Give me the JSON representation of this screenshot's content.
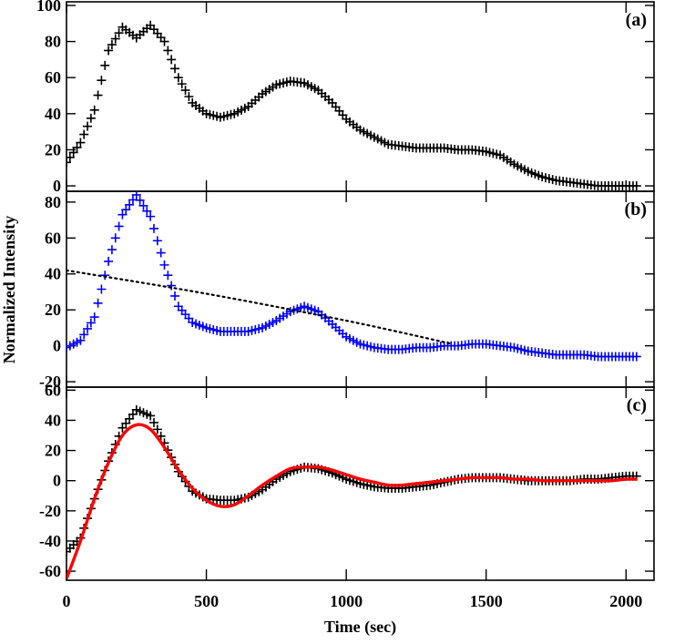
{
  "chart_data": {
    "type": "scatter",
    "xlabel": "Time (sec)",
    "ylabel": "Normalized Intensity",
    "xlim": [
      0,
      2100
    ],
    "xticks": [
      0,
      500,
      1000,
      1500,
      2000
    ],
    "x_tick_labels": [
      "0",
      "500",
      "1000",
      "1500",
      "2000"
    ],
    "panels": [
      {
        "label": "(a)",
        "ylim": [
          -3,
          102
        ],
        "yticks": [
          0,
          20,
          40,
          60,
          80,
          100
        ],
        "y_tick_labels": [
          "0",
          "20",
          "40",
          "60",
          "80",
          "100"
        ],
        "series": [
          {
            "marker": "+",
            "color": "#000000",
            "points": [
              [
                0,
                13
              ],
              [
                50,
                24
              ],
              [
                100,
                42
              ],
              [
                150,
                75
              ],
              [
                200,
                88
              ],
              [
                250,
                82
              ],
              [
                300,
                89
              ],
              [
                350,
                80
              ],
              [
                400,
                60
              ],
              [
                450,
                46
              ],
              [
                500,
                40
              ],
              [
                550,
                38
              ],
              [
                600,
                40
              ],
              [
                650,
                44
              ],
              [
                700,
                51
              ],
              [
                750,
                56
              ],
              [
                800,
                58
              ],
              [
                850,
                57
              ],
              [
                900,
                53
              ],
              [
                950,
                46
              ],
              [
                1000,
                37
              ],
              [
                1050,
                31
              ],
              [
                1100,
                27
              ],
              [
                1150,
                23
              ],
              [
                1200,
                22
              ],
              [
                1250,
                21
              ],
              [
                1300,
                21
              ],
              [
                1350,
                21
              ],
              [
                1400,
                20
              ],
              [
                1450,
                20
              ],
              [
                1500,
                19
              ],
              [
                1550,
                17
              ],
              [
                1600,
                12
              ],
              [
                1650,
                8
              ],
              [
                1700,
                5
              ],
              [
                1750,
                3
              ],
              [
                1800,
                2
              ],
              [
                1850,
                1
              ],
              [
                1900,
                0
              ],
              [
                1950,
                0
              ],
              [
                2000,
                0
              ],
              [
                2040,
                0
              ]
            ]
          }
        ]
      },
      {
        "label": "(b)",
        "ylim": [
          -23,
          86
        ],
        "yticks": [
          -20,
          0,
          20,
          40,
          60,
          80
        ],
        "y_tick_labels": [
          "-20",
          "0",
          "20",
          "40",
          "60",
          "80"
        ],
        "series": [
          {
            "marker": "+",
            "color": "#0000ff",
            "points": [
              [
                0,
                -1
              ],
              [
                50,
                3
              ],
              [
                100,
                16
              ],
              [
                150,
                47
              ],
              [
                200,
                73
              ],
              [
                250,
                84
              ],
              [
                300,
                72
              ],
              [
                350,
                45
              ],
              [
                400,
                22
              ],
              [
                450,
                13
              ],
              [
                500,
                10
              ],
              [
                550,
                8
              ],
              [
                600,
                8
              ],
              [
                650,
                8
              ],
              [
                700,
                10
              ],
              [
                750,
                14
              ],
              [
                800,
                19
              ],
              [
                850,
                22
              ],
              [
                900,
                19
              ],
              [
                950,
                12
              ],
              [
                1000,
                5
              ],
              [
                1050,
                1
              ],
              [
                1100,
                -1
              ],
              [
                1150,
                -2
              ],
              [
                1200,
                -2
              ],
              [
                1250,
                -1
              ],
              [
                1300,
                -1
              ],
              [
                1350,
                0
              ],
              [
                1400,
                0
              ],
              [
                1450,
                1
              ],
              [
                1500,
                1
              ],
              [
                1550,
                0
              ],
              [
                1600,
                -1
              ],
              [
                1650,
                -3
              ],
              [
                1700,
                -4
              ],
              [
                1750,
                -5
              ],
              [
                1800,
                -5
              ],
              [
                1850,
                -5
              ],
              [
                1900,
                -6
              ],
              [
                1950,
                -6
              ],
              [
                2000,
                -6
              ],
              [
                2040,
                -6
              ]
            ]
          },
          {
            "line_style": "dotted",
            "color": "#000000",
            "points": [
              [
                0,
                42
              ],
              [
                500,
                29
              ],
              [
                1000,
                14
              ],
              [
                1380,
                1
              ]
            ]
          }
        ]
      },
      {
        "label": "(c)",
        "ylim": [
          -66,
          62
        ],
        "yticks": [
          -60,
          -40,
          -20,
          0,
          20,
          40,
          60
        ],
        "y_tick_labels": [
          "-60",
          "-40",
          "-20",
          "0",
          "20",
          "40",
          "60"
        ],
        "series": [
          {
            "marker": "+",
            "color": "#000000",
            "points": [
              [
                0,
                -47
              ],
              [
                50,
                -38
              ],
              [
                100,
                -12
              ],
              [
                150,
                13
              ],
              [
                200,
                35
              ],
              [
                250,
                47
              ],
              [
                300,
                43
              ],
              [
                350,
                25
              ],
              [
                400,
                6
              ],
              [
                450,
                -7
              ],
              [
                500,
                -12
              ],
              [
                550,
                -13
              ],
              [
                600,
                -13
              ],
              [
                650,
                -11
              ],
              [
                700,
                -6
              ],
              [
                750,
                1
              ],
              [
                800,
                6
              ],
              [
                850,
                9
              ],
              [
                900,
                8
              ],
              [
                950,
                5
              ],
              [
                1000,
                1
              ],
              [
                1050,
                -2
              ],
              [
                1100,
                -4
              ],
              [
                1150,
                -5
              ],
              [
                1200,
                -5
              ],
              [
                1250,
                -4
              ],
              [
                1300,
                -3
              ],
              [
                1350,
                -1
              ],
              [
                1400,
                1
              ],
              [
                1450,
                2
              ],
              [
                1500,
                2
              ],
              [
                1550,
                2
              ],
              [
                1600,
                1
              ],
              [
                1650,
                0
              ],
              [
                1700,
                0
              ],
              [
                1750,
                0
              ],
              [
                1800,
                0
              ],
              [
                1850,
                1
              ],
              [
                1900,
                1
              ],
              [
                1950,
                2
              ],
              [
                2000,
                3
              ],
              [
                2040,
                3
              ]
            ]
          },
          {
            "line_style": "solid",
            "color": "#ff0000",
            "points": [
              [
                0,
                -65
              ],
              [
                50,
                -40
              ],
              [
                100,
                -12
              ],
              [
                150,
                12
              ],
              [
                200,
                30
              ],
              [
                250,
                37
              ],
              [
                300,
                34
              ],
              [
                350,
                22
              ],
              [
                400,
                7
              ],
              [
                450,
                -5
              ],
              [
                500,
                -13
              ],
              [
                550,
                -17
              ],
              [
                600,
                -16
              ],
              [
                650,
                -10
              ],
              [
                700,
                -3
              ],
              [
                750,
                3
              ],
              [
                800,
                8
              ],
              [
                850,
                9
              ],
              [
                900,
                9
              ],
              [
                950,
                7
              ],
              [
                1000,
                4
              ],
              [
                1050,
                1
              ],
              [
                1100,
                -1
              ],
              [
                1150,
                -3
              ],
              [
                1200,
                -3
              ],
              [
                1250,
                -2
              ],
              [
                1300,
                -1
              ],
              [
                1350,
                0
              ],
              [
                1400,
                1
              ],
              [
                1450,
                2
              ],
              [
                1500,
                2
              ],
              [
                1550,
                2
              ],
              [
                1600,
                1
              ],
              [
                1650,
                1
              ],
              [
                1700,
                0
              ],
              [
                1750,
                0
              ],
              [
                1800,
                0
              ],
              [
                1850,
                0
              ],
              [
                1900,
                0
              ],
              [
                1950,
                0
              ],
              [
                2000,
                1
              ],
              [
                2040,
                1
              ]
            ]
          }
        ]
      }
    ]
  }
}
